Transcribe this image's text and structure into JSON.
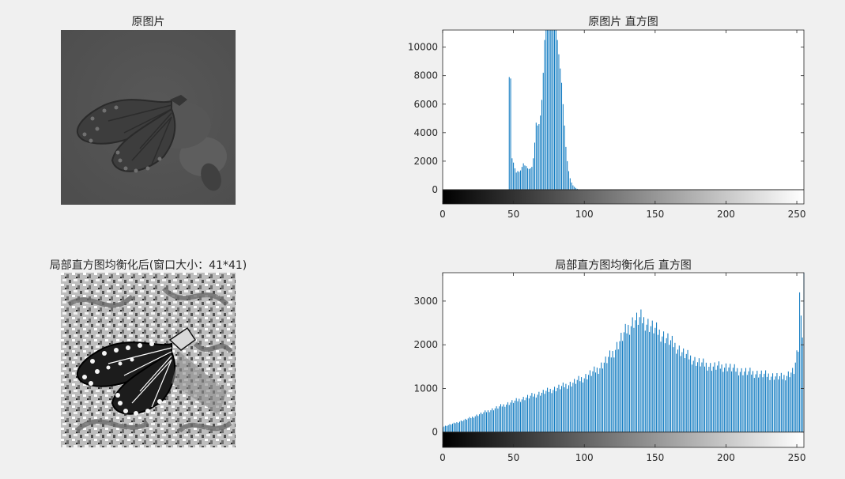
{
  "panels": {
    "orig_image_title": "原图片",
    "orig_hist_title": "原图片 直方图",
    "eq_image_title": "局部直方图均衡化后(窗口大小：41*41)",
    "eq_hist_title": "局部直方图均衡化后 直方图"
  },
  "colors": {
    "bar": "#0072bd",
    "figure_bg": "#f0f0f0",
    "axes_bg": "#ffffff"
  },
  "chart_data": [
    {
      "type": "bar",
      "title": "原图片 直方图",
      "xlabel": "",
      "ylabel": "",
      "xlim": [
        0,
        255
      ],
      "ylim": [
        -1000,
        11200
      ],
      "xticks": [
        0,
        50,
        100,
        150,
        200,
        250
      ],
      "yticks": [
        0,
        2000,
        4000,
        6000,
        8000,
        10000
      ],
      "colorbar": "gray",
      "x": [
        45,
        46,
        47,
        48,
        49,
        50,
        51,
        52,
        53,
        54,
        55,
        56,
        57,
        58,
        59,
        60,
        61,
        62,
        63,
        64,
        65,
        66,
        67,
        68,
        69,
        70,
        71,
        72,
        73,
        74,
        75,
        76,
        77,
        78,
        79,
        80,
        81,
        82,
        83,
        84,
        85,
        86,
        87,
        88,
        89,
        90,
        91,
        92,
        93,
        94,
        95,
        96,
        97,
        98,
        99,
        100
      ],
      "values": [
        0,
        0,
        7900,
        7800,
        2200,
        1900,
        1500,
        1200,
        1300,
        1250,
        1350,
        1600,
        1850,
        1700,
        1650,
        1500,
        1450,
        1500,
        1600,
        2200,
        3300,
        4700,
        4500,
        4600,
        5200,
        6300,
        8200,
        10500,
        11200,
        11200,
        11200,
        11200,
        11200,
        11200,
        11200,
        11200,
        10500,
        9500,
        8500,
        7500,
        6000,
        4500,
        3000,
        2000,
        1300,
        800,
        500,
        300,
        200,
        120,
        60,
        30,
        10,
        0,
        0,
        0
      ]
    },
    {
      "type": "bar",
      "title": "局部直方图均衡化后 直方图",
      "xlabel": "",
      "ylabel": "",
      "xlim": [
        0,
        255
      ],
      "ylim": [
        -350,
        3650
      ],
      "xticks": [
        0,
        50,
        100,
        150,
        200,
        250
      ],
      "yticks": [
        0,
        1000,
        2000,
        3000
      ],
      "colorbar": "gray",
      "keypoints": [
        [
          0,
          120
        ],
        [
          10,
          220
        ],
        [
          20,
          330
        ],
        [
          30,
          460
        ],
        [
          40,
          580
        ],
        [
          50,
          700
        ],
        [
          60,
          800
        ],
        [
          70,
          900
        ],
        [
          80,
          1000
        ],
        [
          90,
          1100
        ],
        [
          100,
          1250
        ],
        [
          110,
          1450
        ],
        [
          120,
          1800
        ],
        [
          128,
          2250
        ],
        [
          135,
          2550
        ],
        [
          140,
          2600
        ],
        [
          148,
          2400
        ],
        [
          160,
          2100
        ],
        [
          170,
          1800
        ],
        [
          180,
          1600
        ],
        [
          190,
          1500
        ],
        [
          200,
          1500
        ],
        [
          210,
          1400
        ],
        [
          220,
          1350
        ],
        [
          230,
          1300
        ],
        [
          240,
          1250
        ],
        [
          248,
          1400
        ],
        [
          251,
          1900
        ],
        [
          252,
          3100
        ],
        [
          253,
          2900
        ],
        [
          254,
          2200
        ],
        [
          255,
          3650
        ]
      ]
    }
  ]
}
